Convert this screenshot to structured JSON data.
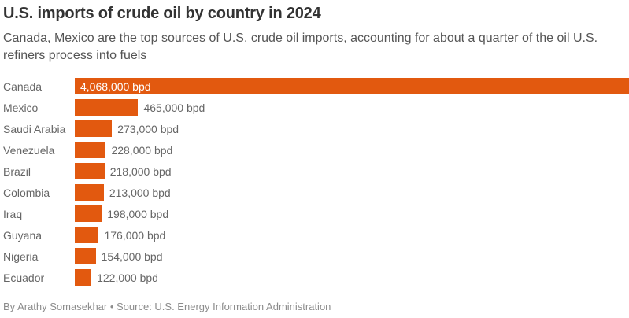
{
  "header": {
    "title": "U.S. imports of crude oil by country in 2024",
    "subtitle": "Canada, Mexico are the top sources of U.S. crude oil imports, accounting for about a quarter of the oil U.S. refiners process into fuels"
  },
  "footer": {
    "byline": "By Arathy Somasekhar • Source: U.S. Energy Information Administration"
  },
  "colors": {
    "bar": "#e2590f",
    "title": "#333333",
    "subtitle": "#555555",
    "label": "#666666",
    "value_inside": "#ffffff",
    "footer": "#8c8c8c",
    "background": "#ffffff"
  },
  "chart_data": {
    "type": "bar",
    "orientation": "horizontal",
    "title": "U.S. imports of crude oil by country in 2024",
    "xlabel": "",
    "ylabel": "",
    "unit": "bpd",
    "xlim": [
      0,
      4068000
    ],
    "grid": false,
    "legend": false,
    "categories": [
      "Canada",
      "Mexico",
      "Saudi Arabia",
      "Venezuela",
      "Brazil",
      "Colombia",
      "Iraq",
      "Guyana",
      "Nigeria",
      "Ecuador"
    ],
    "values": [
      4068000,
      465000,
      273000,
      228000,
      218000,
      213000,
      198000,
      176000,
      154000,
      122000
    ],
    "value_labels": [
      "4,068,000 bpd",
      "465,000 bpd",
      "273,000 bpd",
      "228,000 bpd",
      "218,000 bpd",
      "213,000 bpd",
      "198,000 bpd",
      "176,000 bpd",
      "154,000 bpd",
      "122,000 bpd"
    ],
    "label_inside": [
      true,
      false,
      false,
      false,
      false,
      false,
      false,
      false,
      false,
      false
    ]
  }
}
